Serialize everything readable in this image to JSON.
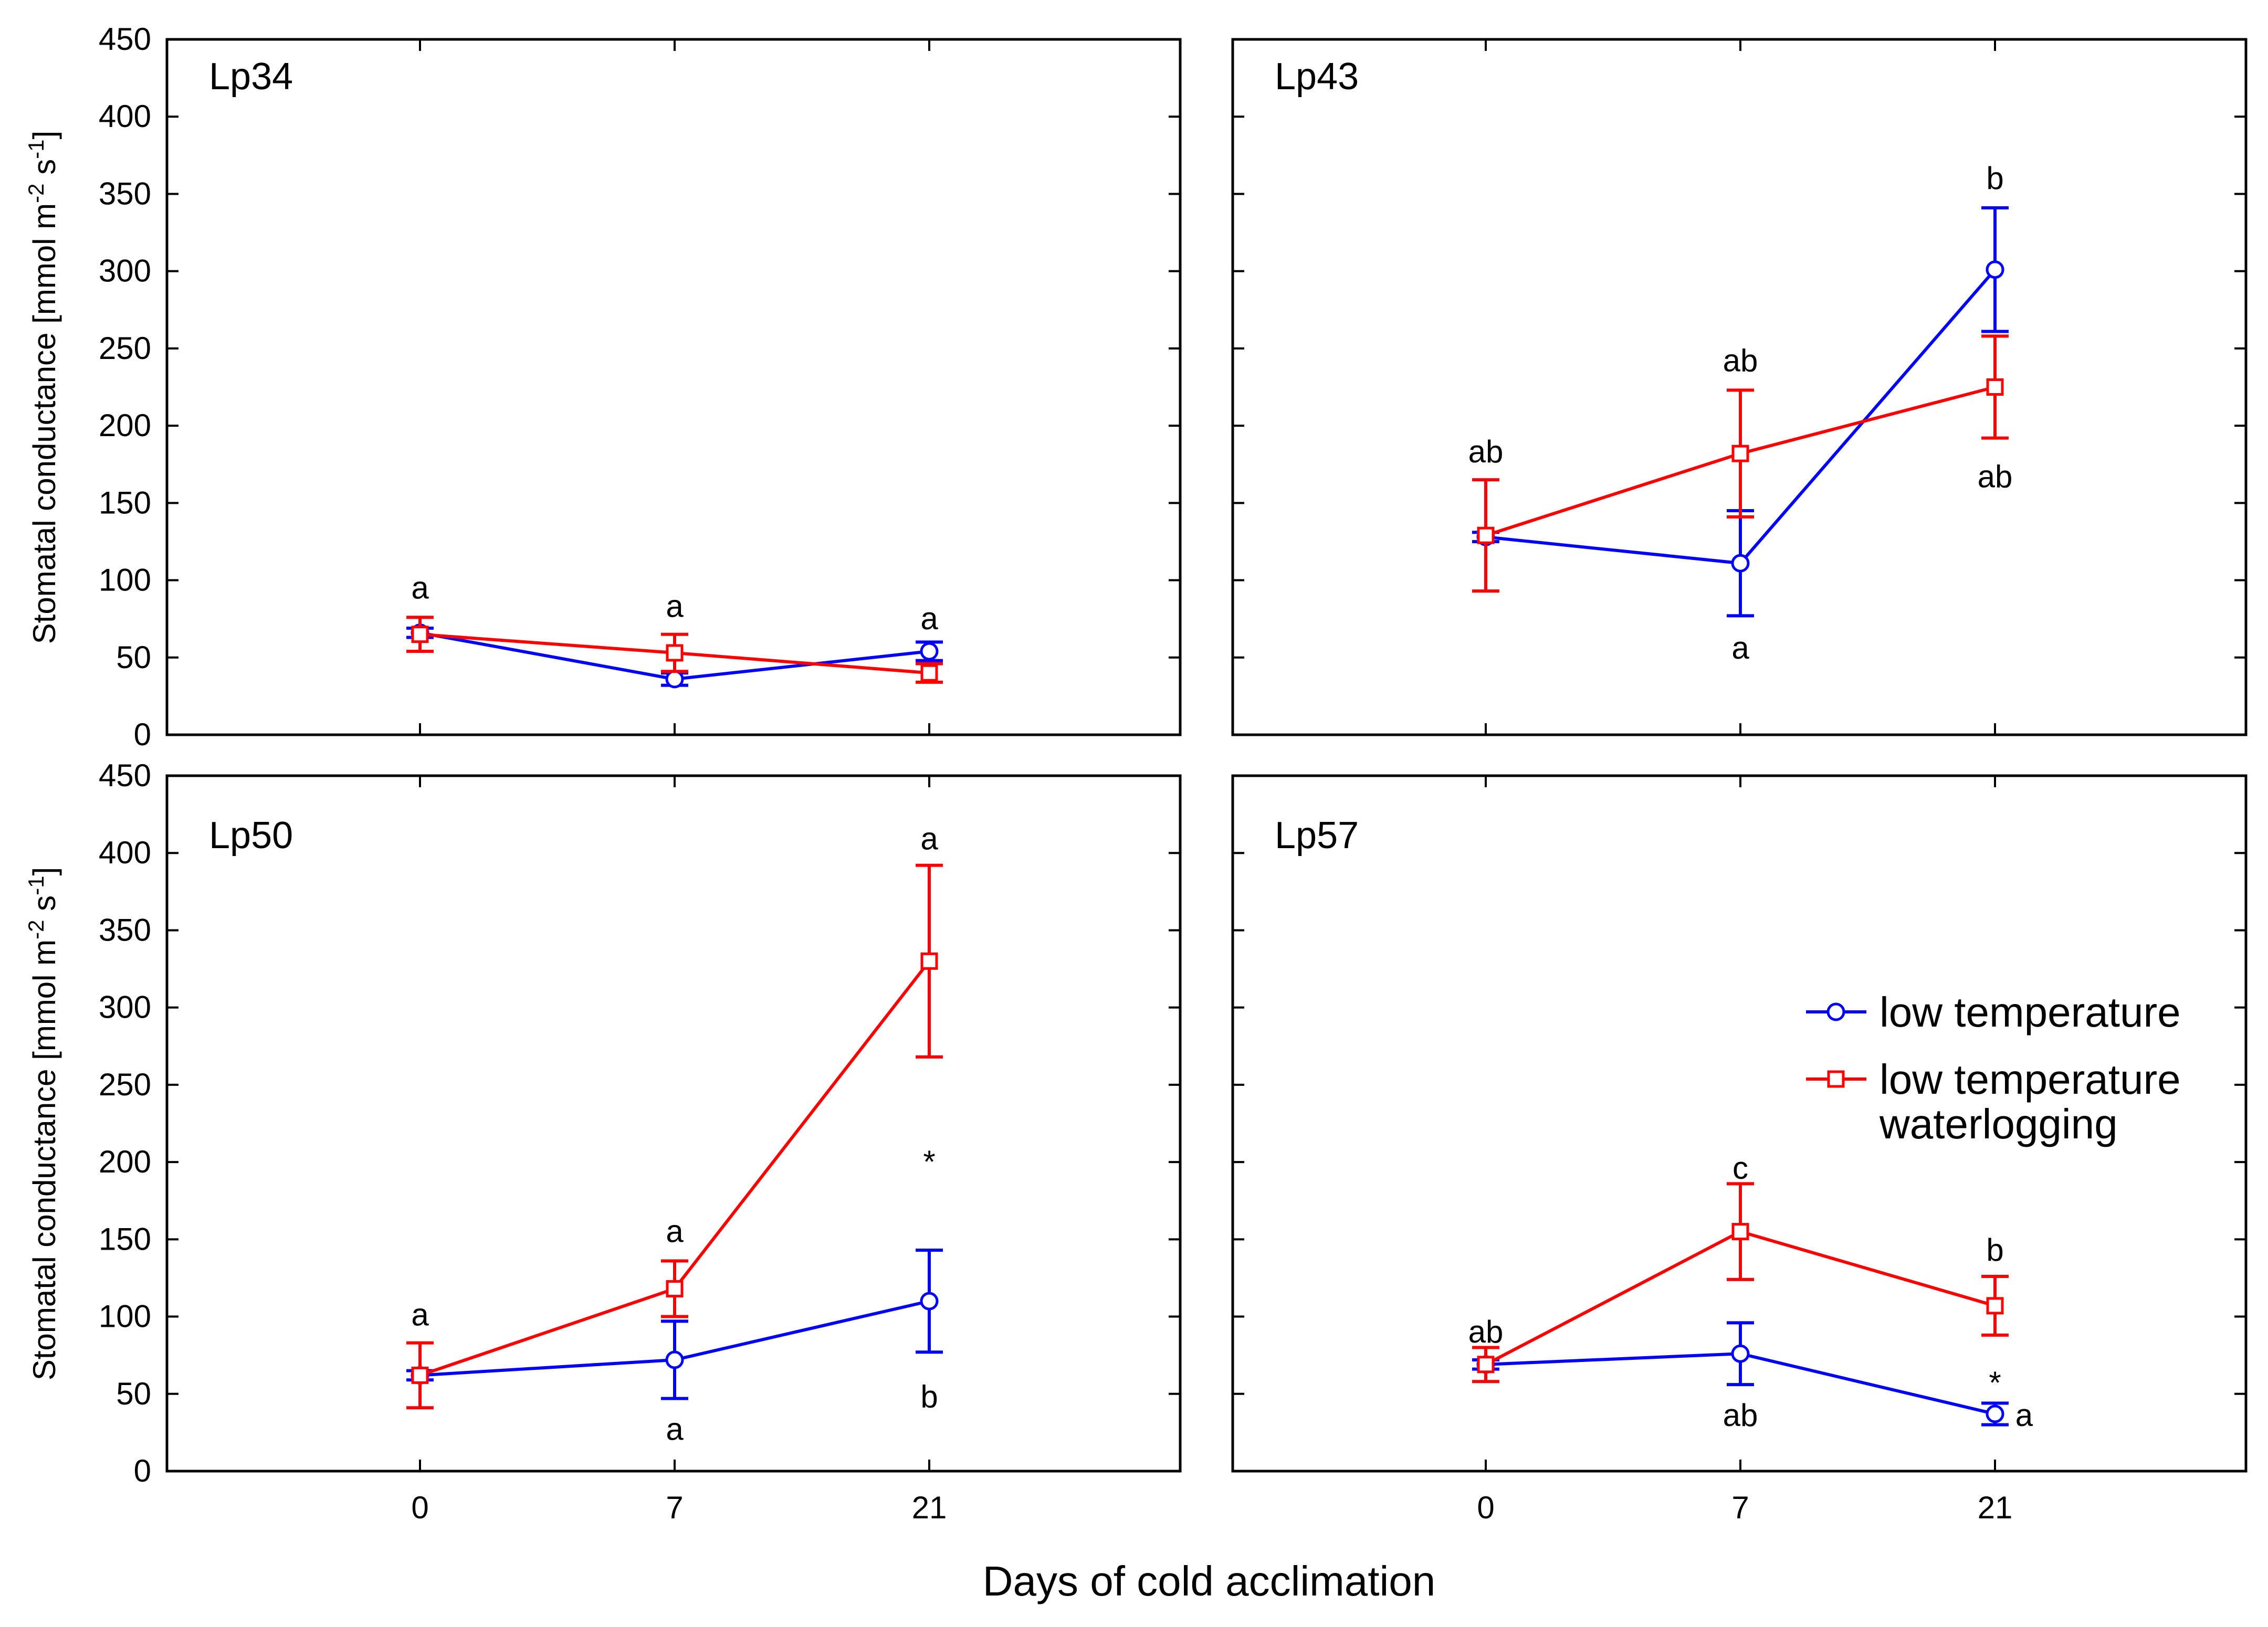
{
  "figure": {
    "xlabel": "Days of cold acclimation",
    "ylabel_main": "Stomatal conductance [mmol m",
    "ylabel_sup1": "-2",
    "ylabel_mid": " s",
    "ylabel_sup2": "-1",
    "ylabel_end": "]"
  },
  "legend": {
    "items": [
      {
        "label_lines": [
          "low temperature"
        ],
        "color": "#0000ff",
        "marker": "circle"
      },
      {
        "label_lines": [
          "low temperature",
          "waterlogging"
        ],
        "color": "#ff0000",
        "marker": "square"
      }
    ]
  },
  "chart_data": [
    {
      "type": "line",
      "title": "Lp34",
      "x": [
        0,
        7,
        21
      ],
      "xticks": [
        "0",
        "7",
        "21"
      ],
      "ylim": [
        0,
        450
      ],
      "yticks": [
        0,
        50,
        100,
        150,
        200,
        250,
        300,
        350,
        400,
        450
      ],
      "series": [
        {
          "name": "low temperature",
          "color": "#0000ff",
          "marker": "circle",
          "values": [
            66,
            36,
            54
          ],
          "err": [
            3,
            4,
            6
          ]
        },
        {
          "name": "low temperature waterlogging",
          "color": "#ff0000",
          "marker": "square",
          "values": [
            65,
            53,
            40
          ],
          "err": [
            11,
            12,
            6
          ]
        }
      ],
      "annotations": [
        {
          "x": 0,
          "y": 95,
          "text": "a"
        },
        {
          "x": 7,
          "y": 83,
          "text": "a"
        },
        {
          "x": 21,
          "y": 75,
          "text": "a"
        }
      ]
    },
    {
      "type": "line",
      "title": "Lp43",
      "x": [
        0,
        7,
        21
      ],
      "xticks": [
        "0",
        "7",
        "21"
      ],
      "ylim": [
        0,
        450
      ],
      "yticks": [
        0,
        50,
        100,
        150,
        200,
        250,
        300,
        350,
        400,
        450
      ],
      "series": [
        {
          "name": "low temperature",
          "color": "#0000ff",
          "marker": "circle",
          "values": [
            128,
            111,
            301
          ],
          "err": [
            3,
            34,
            40
          ]
        },
        {
          "name": "low temperature waterlogging",
          "color": "#ff0000",
          "marker": "square",
          "values": [
            129,
            182,
            225
          ],
          "err": [
            36,
            41,
            33
          ]
        }
      ],
      "annotations": [
        {
          "x": 0,
          "y": 183,
          "text": "ab"
        },
        {
          "x": 7,
          "y": 242,
          "text": "ab"
        },
        {
          "x": 7,
          "y": 56,
          "text": "a"
        },
        {
          "x": 21,
          "y": 360,
          "text": "b"
        },
        {
          "x": 21,
          "y": 167,
          "text": "ab"
        }
      ]
    },
    {
      "type": "line",
      "title": "Lp50",
      "x": [
        0,
        7,
        21
      ],
      "xticks": [
        "0",
        "7",
        "21"
      ],
      "ylim": [
        0,
        450
      ],
      "yticks": [
        0,
        50,
        100,
        150,
        200,
        250,
        300,
        350,
        400,
        450
      ],
      "series": [
        {
          "name": "low temperature",
          "color": "#0000ff",
          "marker": "circle",
          "values": [
            62,
            72,
            110
          ],
          "err": [
            3,
            25,
            33
          ]
        },
        {
          "name": "low temperature waterlogging",
          "color": "#ff0000",
          "marker": "square",
          "values": [
            62,
            118,
            330
          ],
          "err": [
            21,
            18,
            62
          ]
        }
      ],
      "annotations": [
        {
          "x": 0,
          "y": 101,
          "text": "a"
        },
        {
          "x": 7,
          "y": 155,
          "text": "a"
        },
        {
          "x": 7,
          "y": 27,
          "text": "a"
        },
        {
          "x": 21,
          "y": 409,
          "text": "a"
        },
        {
          "x": 21,
          "y": 200,
          "text": "*"
        },
        {
          "x": 21,
          "y": 48,
          "text": "b"
        }
      ]
    },
    {
      "type": "line",
      "title": "Lp57",
      "x": [
        0,
        7,
        21
      ],
      "xticks": [
        "0",
        "7",
        "21"
      ],
      "ylim": [
        0,
        450
      ],
      "yticks": [
        0,
        50,
        100,
        150,
        200,
        250,
        300,
        350,
        400,
        450
      ],
      "series": [
        {
          "name": "low temperature",
          "color": "#0000ff",
          "marker": "circle",
          "values": [
            69,
            76,
            37
          ],
          "err": [
            3,
            20,
            7
          ]
        },
        {
          "name": "low temperature waterlogging",
          "color": "#ff0000",
          "marker": "square",
          "values": [
            69,
            155,
            107
          ],
          "err": [
            11,
            31,
            19
          ]
        }
      ],
      "annotations": [
        {
          "x": 0,
          "y": 90,
          "text": "ab"
        },
        {
          "x": 7,
          "y": 196,
          "text": "c"
        },
        {
          "x": 7,
          "y": 36,
          "text": "ab"
        },
        {
          "x": 21,
          "y": 143,
          "text": "b"
        },
        {
          "x": 21,
          "y": 57,
          "text": "*"
        },
        {
          "x": 22.6,
          "y": 36,
          "text": "a"
        }
      ]
    }
  ]
}
